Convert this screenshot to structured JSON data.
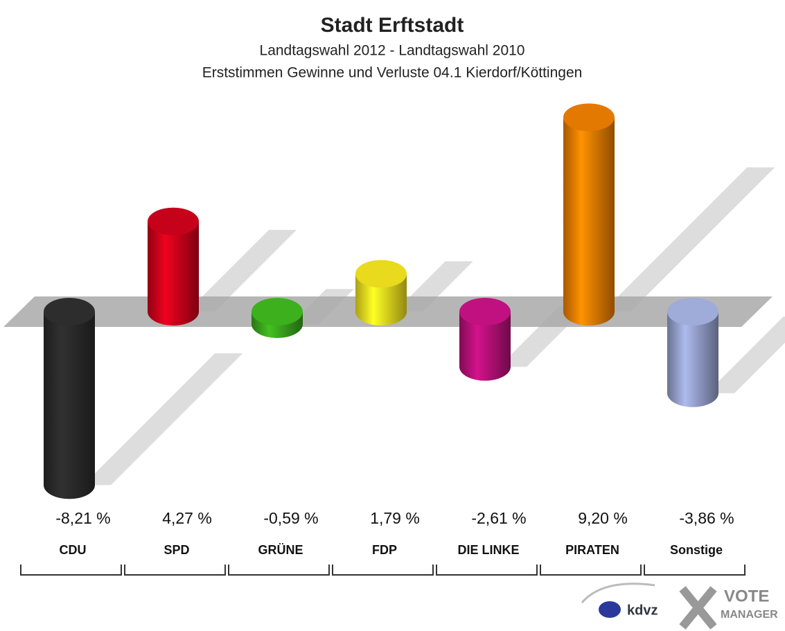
{
  "chart_data": {
    "type": "bar",
    "title": "Stadt Erftstadt",
    "subtitle": [
      "Landtagswahl 2012 - Landtagswahl 2010",
      "Erststimmen Gewinne und Verluste 04.1 Kierdorf/Köttingen"
    ],
    "categories": [
      "CDU",
      "SPD",
      "GRÜNE",
      "FDP",
      "DIE LINKE",
      "PIRATEN",
      "Sonstige"
    ],
    "values": [
      -8.21,
      4.27,
      -0.59,
      1.79,
      -2.61,
      9.2,
      -3.86
    ],
    "value_labels": [
      "-8,21 %",
      "4,27 %",
      "-0,59 %",
      "1,79 %",
      "-2,61 %",
      "9,20 %",
      "-3,86 %"
    ],
    "colors": [
      "#2b2b2b",
      "#d0021b",
      "#3aa81d",
      "#f5e51f",
      "#b8107a",
      "#f07f00",
      "#97a3cf"
    ],
    "logo": [
      "kdvz",
      "VOTE",
      "MANAGER"
    ]
  }
}
